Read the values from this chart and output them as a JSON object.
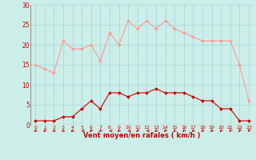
{
  "hours": [
    0,
    1,
    2,
    3,
    4,
    5,
    6,
    7,
    8,
    9,
    10,
    11,
    12,
    13,
    14,
    15,
    16,
    17,
    18,
    19,
    20,
    21,
    22,
    23
  ],
  "wind_avg": [
    1,
    1,
    1,
    2,
    2,
    4,
    6,
    4,
    8,
    8,
    7,
    8,
    8,
    9,
    8,
    8,
    8,
    7,
    6,
    6,
    4,
    4,
    1,
    1
  ],
  "wind_gust": [
    15,
    14,
    13,
    21,
    19,
    19,
    20,
    16,
    23,
    20,
    26,
    24,
    26,
    24,
    26,
    24,
    23,
    22,
    21,
    21,
    21,
    21,
    15,
    6
  ],
  "bg_color": "#cceee8",
  "grid_color": "#aadddd",
  "line_avg_color": "#cc0000",
  "line_gust_color": "#ff9999",
  "xlabel": "Vent moyen/en rafales ( km/h )",
  "xlabel_color": "#cc0000",
  "tick_color": "#cc0000",
  "arrow_color": "#cc0000",
  "ylim": [
    0,
    30
  ],
  "yticks": [
    0,
    5,
    10,
    15,
    20,
    25,
    30
  ],
  "xlim": [
    -0.5,
    23.5
  ],
  "arrow_angles_deg": [
    210,
    200,
    210,
    215,
    220,
    270,
    205,
    210,
    270,
    210,
    270,
    205,
    270,
    210,
    205,
    210,
    205,
    210,
    205,
    205,
    205,
    195,
    195,
    195
  ]
}
